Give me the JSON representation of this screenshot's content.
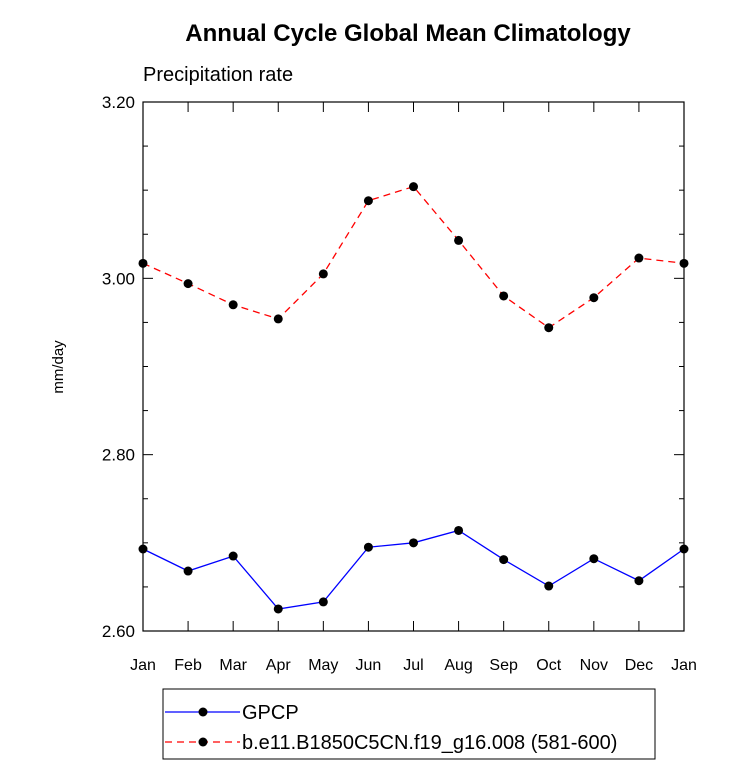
{
  "chart_data": {
    "type": "line",
    "title": "Annual Cycle Global Mean Climatology",
    "subtitle": "Precipitation rate",
    "xlabel": "",
    "ylabel": "mm/day",
    "categories": [
      "Jan",
      "Feb",
      "Mar",
      "Apr",
      "May",
      "Jun",
      "Jul",
      "Aug",
      "Sep",
      "Oct",
      "Nov",
      "Dec",
      "Jan"
    ],
    "ylim": [
      2.6,
      3.2
    ],
    "yticks": [
      "2.60",
      "2.80",
      "3.00",
      "3.20"
    ],
    "grid": false,
    "legend_position": "bottom",
    "series": [
      {
        "name": "GPCP",
        "color": "#0000ff",
        "line_style": "solid",
        "marker": "circle",
        "values": [
          2.693,
          2.668,
          2.685,
          2.625,
          2.633,
          2.695,
          2.7,
          2.714,
          2.681,
          2.651,
          2.682,
          2.657,
          2.693
        ]
      },
      {
        "name": "b.e11.B1850C5CN.f19_g16.008 (581-600)",
        "color": "#ff0000",
        "line_style": "dashed",
        "marker": "circle",
        "values": [
          3.017,
          2.994,
          2.97,
          2.954,
          3.005,
          3.088,
          3.104,
          3.043,
          2.98,
          2.944,
          2.978,
          3.023,
          3.017
        ]
      }
    ]
  }
}
